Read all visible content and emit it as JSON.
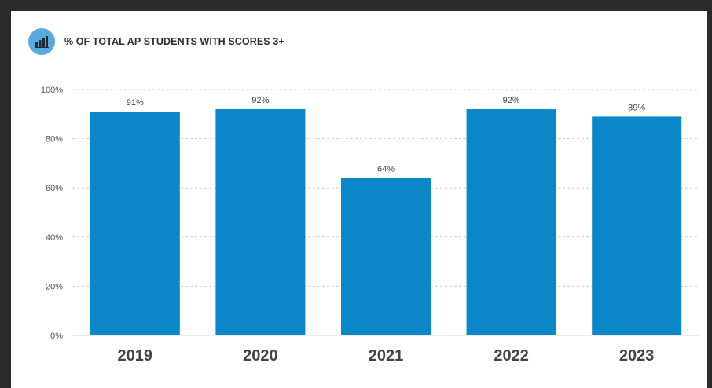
{
  "chart_title": "% OF TOTAL AP STUDENTS WITH SCORES 3+",
  "header_icon": "bar-chart-icon",
  "colors": {
    "bar": "#0a87c8",
    "icon_badge": "#5aa9dd",
    "grid": "#cfcfcf"
  },
  "chart_data": {
    "type": "bar",
    "title": "% OF TOTAL AP STUDENTS WITH SCORES 3+",
    "categories": [
      "2019",
      "2020",
      "2021",
      "2022",
      "2023"
    ],
    "values": [
      91,
      92,
      64,
      92,
      89
    ],
    "data_labels": [
      "91%",
      "92%",
      "64%",
      "92%",
      "89%"
    ],
    "ylim": [
      0,
      100
    ],
    "yticks": [
      0,
      20,
      40,
      60,
      80,
      100
    ],
    "ytick_labels": [
      "0%",
      "20%",
      "40%",
      "60%",
      "80%",
      "100%"
    ],
    "grid": "dashed horizontal",
    "legend": "none"
  }
}
